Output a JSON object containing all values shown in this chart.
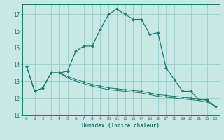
{
  "title": "",
  "xlabel": "Humidex (Indice chaleur)",
  "xlim": [
    -0.5,
    23.5
  ],
  "ylim": [
    11,
    17.6
  ],
  "yticks": [
    11,
    12,
    13,
    14,
    15,
    16,
    17
  ],
  "xticks": [
    0,
    1,
    2,
    3,
    4,
    5,
    6,
    7,
    8,
    9,
    10,
    11,
    12,
    13,
    14,
    15,
    16,
    17,
    18,
    19,
    20,
    21,
    22,
    23
  ],
  "bg_color": "#c8e8e4",
  "grid_color": "#99cccc",
  "line_color": "#1a7a6e",
  "series1_x": [
    0,
    1,
    2,
    3,
    4,
    5,
    6,
    7,
    8,
    9,
    10,
    11,
    12,
    13,
    14,
    15,
    16,
    17,
    18,
    19,
    20,
    21,
    22,
    23
  ],
  "series1_y": [
    13.9,
    12.4,
    12.6,
    13.5,
    13.5,
    13.6,
    14.8,
    15.1,
    15.1,
    16.1,
    17.0,
    17.3,
    17.0,
    16.7,
    16.7,
    15.8,
    15.9,
    13.8,
    13.1,
    12.4,
    12.4,
    11.9,
    11.9,
    11.5
  ],
  "series2_x": [
    0,
    1,
    2,
    3,
    4,
    5,
    6,
    7,
    8,
    9,
    10,
    11,
    12,
    13,
    14,
    15,
    16,
    17,
    18,
    19,
    20,
    21,
    22,
    23
  ],
  "series2_y": [
    13.9,
    12.4,
    12.6,
    13.5,
    13.5,
    13.3,
    13.1,
    12.95,
    12.8,
    12.7,
    12.6,
    12.55,
    12.5,
    12.45,
    12.4,
    12.3,
    12.2,
    12.15,
    12.1,
    12.05,
    12.0,
    11.95,
    11.85,
    11.5
  ],
  "series3_x": [
    0,
    1,
    2,
    3,
    4,
    5,
    6,
    7,
    8,
    9,
    10,
    11,
    12,
    13,
    14,
    15,
    16,
    17,
    18,
    19,
    20,
    21,
    22,
    23
  ],
  "series3_y": [
    13.9,
    12.4,
    12.6,
    13.5,
    13.5,
    13.2,
    13.0,
    12.85,
    12.7,
    12.6,
    12.5,
    12.45,
    12.4,
    12.35,
    12.3,
    12.2,
    12.1,
    12.05,
    12.0,
    11.95,
    11.9,
    11.85,
    11.75,
    11.5
  ]
}
